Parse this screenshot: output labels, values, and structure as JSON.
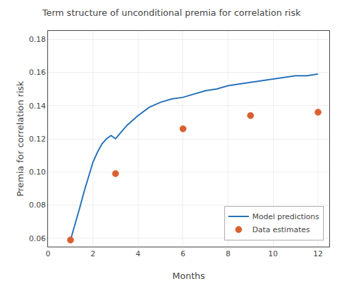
{
  "chart_data": {
    "type": "line",
    "title": "Term structure of unconditional premia for correlation risk",
    "x_label": "Months",
    "y_label": "Premia for correlation risk",
    "series": [
      {
        "name": "Model predictions",
        "type": "line",
        "color": "#2671b8",
        "line_style": "solid",
        "x": [
          1,
          1.2,
          1.4,
          1.6,
          1.8,
          2.0,
          2.2,
          2.4,
          2.6,
          2.8,
          3.0,
          3.5,
          4.0,
          4.5,
          5.0,
          5.5,
          6.0,
          6.5,
          7.0,
          7.5,
          8.0,
          8.5,
          9.0,
          9.5,
          10.0,
          10.5,
          11.0,
          11.5,
          12.0
        ],
        "values": [
          0.059,
          0.068,
          0.078,
          0.088,
          0.097,
          0.106,
          0.112,
          0.117,
          0.12,
          0.122,
          0.12,
          0.128,
          0.134,
          0.139,
          0.142,
          0.144,
          0.145,
          0.147,
          0.149,
          0.15,
          0.152,
          0.153,
          0.154,
          0.155,
          0.156,
          0.157,
          0.158,
          0.158,
          0.159
        ]
      },
      {
        "name": "Data estimates",
        "type": "scatter",
        "color": "#d96030",
        "marker": "circle",
        "x": [
          1,
          3,
          6,
          9,
          12
        ],
        "values": [
          0.059,
          0.099,
          0.126,
          0.134,
          0.136
        ]
      }
    ],
    "xlim": [
      0,
      12.5
    ],
    "xticks": [
      0,
      2,
      4,
      6,
      8,
      10,
      12
    ],
    "ylim": [
      0.055,
      0.185
    ],
    "yticks": [
      0.06,
      0.08,
      {
        "value": 0.1,
        "label": "0.10"
      },
      0.12,
      0.14,
      0.16,
      0.18
    ],
    "grid": true,
    "legend": "lower right"
  }
}
